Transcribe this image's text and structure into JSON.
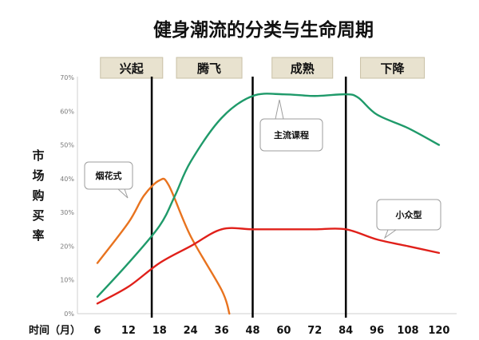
{
  "title": "健身潮流的分类与生命周期",
  "chart_data": {
    "type": "line",
    "title": "健身潮流的分类与生命周期",
    "ylabel": "市场购买率",
    "xlabel": "时间（月）",
    "x_ticks": [
      "6",
      "12",
      "18",
      "24",
      "36",
      "48",
      "60",
      "72",
      "84",
      "96",
      "108",
      "120"
    ],
    "y_ticks": [
      "0%",
      "10%",
      "20%",
      "30%",
      "40%",
      "50%",
      "60%",
      "70%"
    ],
    "ylim": [
      0,
      70
    ],
    "phases": [
      {
        "label": "兴起"
      },
      {
        "label": "腾飞"
      },
      {
        "label": "成熟"
      },
      {
        "label": "下降"
      }
    ],
    "phase_boundaries_x_index": [
      1.75,
      5.0,
      8.0
    ],
    "series": [
      {
        "name": "烟花式",
        "color": "#e8731f",
        "points": [
          [
            0,
            15
          ],
          [
            1,
            27
          ],
          [
            1.5,
            35
          ],
          [
            2,
            39.5
          ],
          [
            2.3,
            38
          ],
          [
            3,
            23
          ],
          [
            4,
            7
          ],
          [
            4.25,
            0
          ]
        ]
      },
      {
        "name": "主流课程",
        "color": "#1f9a6a",
        "points": [
          [
            0,
            5
          ],
          [
            1,
            15
          ],
          [
            2,
            26
          ],
          [
            2.5,
            35
          ],
          [
            3,
            45
          ],
          [
            4,
            58
          ],
          [
            5,
            64.5
          ],
          [
            6,
            65
          ],
          [
            7,
            64.5
          ],
          [
            8,
            65
          ],
          [
            8.4,
            64
          ],
          [
            9,
            59
          ],
          [
            10,
            55
          ],
          [
            11,
            50
          ]
        ]
      },
      {
        "name": "小众型",
        "color": "#e0201a",
        "points": [
          [
            0,
            3
          ],
          [
            1,
            8
          ],
          [
            2,
            15
          ],
          [
            3,
            20
          ],
          [
            4,
            25
          ],
          [
            5,
            25
          ],
          [
            6,
            25
          ],
          [
            7,
            25
          ],
          [
            8,
            25
          ],
          [
            9,
            22
          ],
          [
            10,
            20
          ],
          [
            11,
            18
          ]
        ]
      }
    ],
    "annotations": [
      "烟花式",
      "主流课程",
      "小众型"
    ]
  }
}
